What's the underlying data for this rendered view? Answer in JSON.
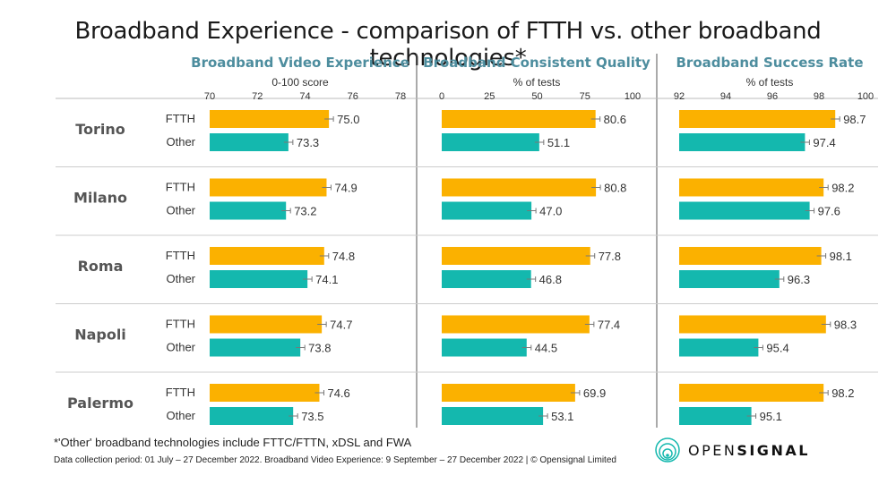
{
  "title": "Broadband Experience - comparison of FTTH vs. other broadband technologies*",
  "footnote": "*'Other' broadband technologies include FTTC/FTTN, xDSL and FWA",
  "data_note": "Data collection period: 01 July – 27 December 2022. Broadband Video Experience: 9 September – 27 December 2022 | © Opensignal Limited",
  "logo": {
    "name_light": "OPEN",
    "name_bold": "SIGNAL",
    "icon": "opensignal-logo-icon"
  },
  "colors": {
    "ftth": "#FBB100",
    "other": "#14B8AE",
    "title": "#4d8d9e"
  },
  "chart_data": [
    {
      "type": "bar",
      "title": "Broadband  Video Experience",
      "unit": "0-100 score",
      "xlim": [
        70,
        78
      ],
      "ticks": [
        "70",
        "72",
        "74",
        "76",
        "78"
      ],
      "categories": [
        "Torino",
        "Milano",
        "Roma",
        "Napoli",
        "Palermo"
      ],
      "series": [
        {
          "name": "FTTH",
          "values": [
            75.0,
            74.9,
            74.8,
            74.7,
            74.6
          ],
          "labels": [
            "75.0",
            "74.9",
            "74.8",
            "74.7",
            "74.6"
          ]
        },
        {
          "name": "Other",
          "values": [
            73.3,
            73.2,
            74.1,
            73.8,
            73.5
          ],
          "labels": [
            "73.3",
            "73.2",
            "74.1",
            "73.8",
            "73.5"
          ]
        }
      ]
    },
    {
      "type": "bar",
      "title": "Broadband Consistent Quality",
      "unit": "% of tests",
      "xlim": [
        0,
        100
      ],
      "ticks": [
        "0",
        "25",
        "50",
        "75",
        "100"
      ],
      "categories": [
        "Torino",
        "Milano",
        "Roma",
        "Napoli",
        "Palermo"
      ],
      "series": [
        {
          "name": "FTTH",
          "values": [
            80.6,
            80.8,
            77.8,
            77.4,
            69.9
          ],
          "labels": [
            "80.6",
            "80.8",
            "77.8",
            "77.4",
            "69.9"
          ]
        },
        {
          "name": "Other",
          "values": [
            51.1,
            47.0,
            46.8,
            44.5,
            53.1
          ],
          "labels": [
            "51.1",
            "47.0",
            "46.8",
            "44.5",
            "53.1"
          ]
        }
      ]
    },
    {
      "type": "bar",
      "title": "Broadband  Success Rate",
      "unit": "% of tests",
      "xlim": [
        92,
        100
      ],
      "ticks": [
        "92",
        "94",
        "96",
        "98",
        "100"
      ],
      "categories": [
        "Torino",
        "Milano",
        "Roma",
        "Napoli",
        "Palermo"
      ],
      "series": [
        {
          "name": "FTTH",
          "values": [
            98.7,
            98.2,
            98.1,
            98.3,
            98.2
          ],
          "labels": [
            "98.7",
            "98.2",
            "98.1",
            "98.3",
            "98.2"
          ]
        },
        {
          "name": "Other",
          "values": [
            97.4,
            97.6,
            96.3,
            95.4,
            95.1
          ],
          "labels": [
            "97.4",
            "97.6",
            "96.3",
            "95.4",
            "95.1"
          ]
        }
      ]
    }
  ]
}
